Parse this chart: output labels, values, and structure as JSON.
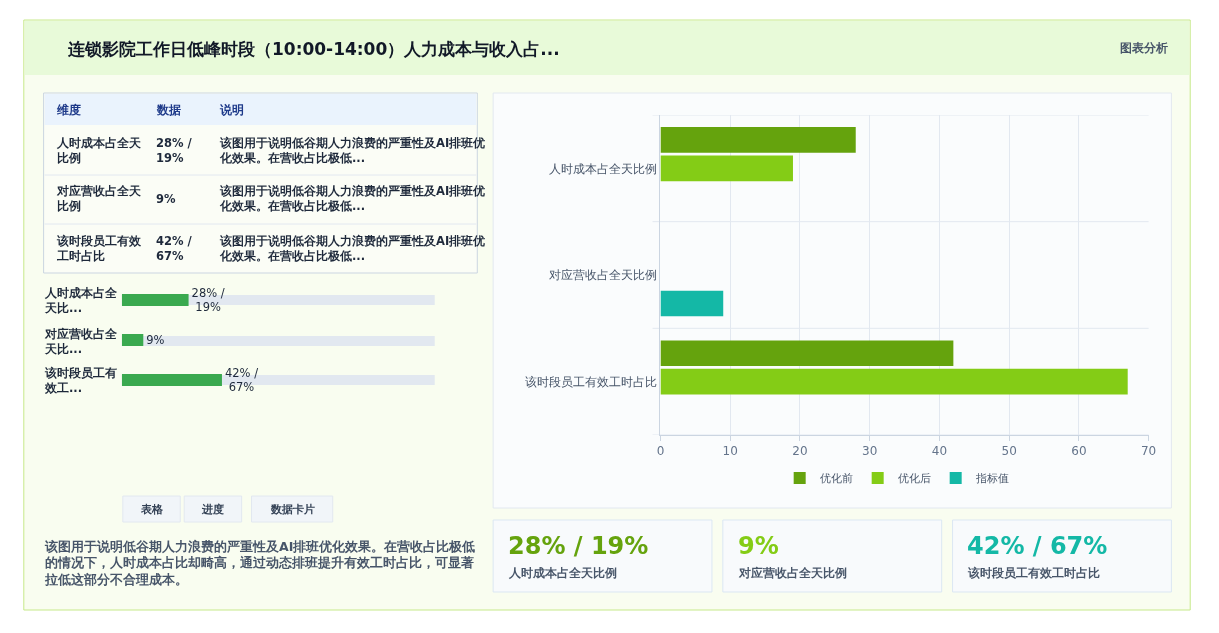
{
  "chart_data": [
    {
      "type": "other",
      "title": "连锁影院工作日低峰时段（10:00-14:00）人力成本与收入占...",
      "annotations": [
        "图表分析"
      ]
    },
    {
      "type": "other",
      "annotations": [
        "维度",
        "数据",
        "说明",
        "人时成本占全天比例",
        "28% / 19%",
        "该图用于说明低谷期人力浪费的严重性及AI排班优化效果。在营收占比极低...",
        "对应营收占全天比例",
        "9%",
        "该图用于说明低谷期人力浪费的严重性及AI排班优化效果。在营收占比极低...",
        "该时段员工有效工时占比",
        "42% / 67%",
        "该图用于说明低谷期人力浪费的严重性及AI排班优化效果。在营收占比极低..."
      ]
    },
    {
      "type": "bar",
      "orientation": "horizontal",
      "categories": [
        "人时成本占全天比...",
        "对应营收占全天比...",
        "该时段员工有效工..."
      ],
      "values": [
        28,
        9,
        42
      ],
      "value_labels": [
        "28% / 19%",
        "9%",
        "42% / 67%"
      ],
      "color": "#3aa94f"
    },
    {
      "type": "other",
      "annotations": [
        "表格",
        "进度",
        "数据卡片",
        "该图用于说明低谷期人力浪费的严重性及AI排班优化效果。在营收占比极低的情况下，人时成本占比却畸高，通过动态排班提升有效工时占比，可显著拉低这部分不合理成本。"
      ]
    },
    {
      "type": "bar",
      "orientation": "horizontal",
      "categories": [
        "人时成本占全天比例",
        "对应营收占全天比例",
        "该时段员工有效工时占比"
      ],
      "series": [
        {
          "name": "优化前",
          "color": "#65a30d",
          "values": [
            28,
            null,
            42
          ]
        },
        {
          "name": "优化后",
          "color": "#84cc16",
          "values": [
            19,
            null,
            67
          ]
        },
        {
          "name": "指标值",
          "color": "#14b8a6",
          "values": [
            null,
            9,
            null
          ]
        }
      ],
      "xlim": [
        0,
        70
      ],
      "xticks": [
        0,
        10,
        20,
        30,
        40,
        50,
        60,
        70
      ],
      "grid": true,
      "legend": "bottom"
    },
    {
      "type": "other",
      "annotations": [
        "28% / 19%",
        "人时成本占全天比例",
        "9%",
        "对应营收占全天比例",
        "42% / 67%",
        "该时段员工有效工时占比"
      ]
    }
  ]
}
